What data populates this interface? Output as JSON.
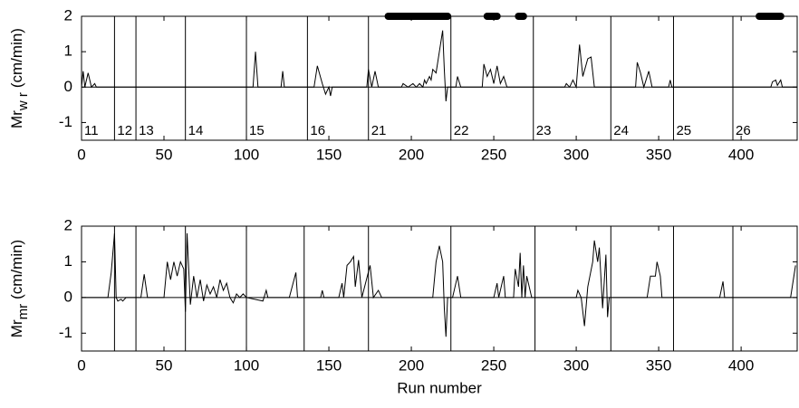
{
  "chart_data": [
    {
      "type": "line",
      "ylabel": "Mr",
      "ylabel_sub": "w r",
      "ylabel_unit": "(cm/min)",
      "xlim": [
        0,
        434
      ],
      "ylim": [
        -1.5,
        2
      ],
      "xticks": [
        0,
        50,
        100,
        150,
        200,
        250,
        300,
        350,
        400
      ],
      "yticks": [
        -1,
        0,
        1,
        2
      ],
      "hline": 0,
      "boundaries": [
        20,
        33,
        63,
        100,
        137,
        174,
        224,
        274,
        321,
        359,
        395
      ],
      "run_labels": [
        "11",
        "12",
        "13",
        "14",
        "15",
        "16",
        "21",
        "22",
        "23",
        "24",
        "25",
        "26"
      ],
      "events": [
        [
          186,
          222
        ],
        [
          246,
          252
        ],
        [
          265,
          268
        ],
        [
          411,
          424
        ]
      ],
      "series": [
        {
          "color": "#000000",
          "x": [
            0,
            1,
            2,
            4,
            6,
            8,
            9,
            104,
            105.5,
            107,
            121,
            122,
            123,
            141,
            143,
            146,
            148,
            150,
            151,
            152,
            173,
            174,
            176,
            178,
            180,
            194,
            195,
            198,
            201,
            203,
            205,
            207,
            208,
            209,
            211,
            212,
            213,
            215,
            217,
            219,
            220,
            221,
            222,
            227,
            228,
            230,
            243,
            244,
            246,
            248,
            250,
            252,
            254,
            256,
            258,
            293,
            294,
            296,
            298,
            300,
            302,
            304,
            307,
            309,
            311,
            336,
            337,
            339,
            341,
            344,
            346,
            356,
            357,
            358,
            418,
            419,
            421,
            422,
            424,
            425,
            434
          ],
          "values": [
            0,
            0.45,
            0,
            0.4,
            0,
            0.1,
            0,
            0,
            1.0,
            0,
            0,
            0.45,
            0,
            0,
            0.6,
            0.1,
            -0.2,
            0,
            -0.25,
            0,
            0,
            0.5,
            0,
            0.45,
            0,
            0,
            0.1,
            0,
            0.1,
            0,
            0.1,
            0,
            0.2,
            0.1,
            0.3,
            0.2,
            0.5,
            0.4,
            1.0,
            1.6,
            0.5,
            -0.4,
            0,
            0,
            0.3,
            0,
            0,
            0.65,
            0.3,
            0.5,
            0.1,
            0.6,
            0.1,
            0.3,
            0,
            0,
            0.1,
            0,
            0.2,
            0,
            1.2,
            0.3,
            0.8,
            0.85,
            0,
            0,
            0.7,
            0.4,
            0,
            0.45,
            0,
            0,
            0.2,
            0,
            0,
            0.15,
            0.2,
            0.05,
            0.2,
            0,
            0
          ]
        }
      ]
    },
    {
      "type": "line",
      "ylabel": "Mr",
      "ylabel_sub": "mr",
      "ylabel_unit": "(cm/min)",
      "xlabel": "Run number",
      "xlim": [
        0,
        434
      ],
      "ylim": [
        -1.5,
        2
      ],
      "xticks": [
        0,
        50,
        100,
        150,
        200,
        250,
        300,
        350,
        400
      ],
      "yticks": [
        -1,
        0,
        1,
        2
      ],
      "hline": 0,
      "boundaries": [
        20,
        33,
        63,
        100,
        135,
        174,
        224,
        275,
        321,
        359,
        395
      ],
      "series": [
        {
          "color": "#000000",
          "x": [
            0,
            16,
            18,
            20,
            21,
            22,
            24,
            25,
            27,
            36,
            38,
            40,
            50,
            52,
            54,
            56,
            58,
            60,
            62,
            63,
            64,
            66,
            68,
            70,
            72,
            74,
            76,
            78,
            80,
            82,
            84,
            86,
            88,
            90,
            92,
            94,
            96,
            98,
            100,
            110,
            112,
            113,
            126,
            130,
            131,
            145,
            146,
            147,
            156,
            158,
            159,
            161,
            163,
            165,
            166,
            168,
            170,
            175,
            177,
            180,
            182,
            213,
            215,
            217,
            219,
            220,
            221,
            222,
            225,
            228,
            230,
            250,
            252,
            253,
            256,
            257,
            262,
            263,
            265,
            266,
            267,
            268,
            269,
            270,
            273,
            300,
            301,
            303,
            305,
            307,
            310,
            311,
            313,
            314,
            316,
            318,
            319,
            320,
            343,
            345,
            348,
            349,
            351,
            352,
            387,
            389,
            390,
            430,
            433
          ],
          "values": [
            0,
            0,
            0.7,
            1.8,
            0,
            -0.1,
            -0.05,
            -0.1,
            0,
            0,
            0.65,
            0,
            0,
            1.0,
            0.5,
            1.0,
            0.6,
            1.0,
            0.8,
            -0.4,
            1.8,
            -0.2,
            0.6,
            0,
            0.5,
            -0.1,
            0.35,
            0.1,
            0.3,
            0,
            0.5,
            0.2,
            0.4,
            0,
            -0.15,
            0.1,
            0,
            0.1,
            0,
            -0.1,
            0.2,
            0,
            0,
            0.7,
            0,
            0,
            0.2,
            0,
            0,
            0.4,
            0,
            0.9,
            1.0,
            1.15,
            0.3,
            1.05,
            0,
            0.9,
            0,
            0.2,
            0,
            0,
            1.0,
            1.45,
            1.0,
            -0.3,
            -1.1,
            0,
            0,
            0.6,
            0,
            0,
            0.4,
            0,
            0.6,
            0,
            0,
            0.8,
            0.3,
            1.25,
            0,
            0.9,
            0,
            0.6,
            0,
            0,
            0.2,
            0,
            -0.8,
            0.3,
            1.0,
            1.6,
            1.0,
            1.4,
            -0.3,
            1.2,
            -0.55,
            0,
            0,
            0.6,
            0.6,
            1.0,
            0.6,
            0,
            0,
            0.45,
            0,
            0,
            0.9
          ]
        }
      ]
    }
  ]
}
